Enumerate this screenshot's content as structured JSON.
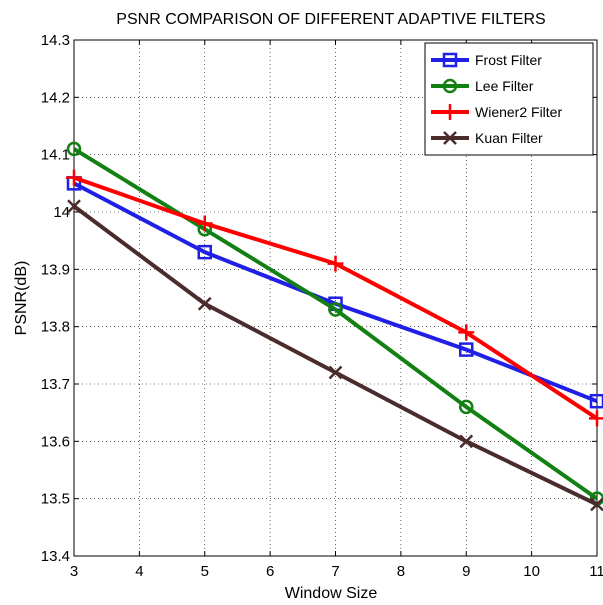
{
  "chart_data": {
    "type": "line",
    "title": "PSNR COMPARISON OF DIFFERENT ADAPTIVE FILTERS",
    "xlabel": "Window Size",
    "ylabel": "PSNR(dB)",
    "xlim": [
      3,
      11
    ],
    "ylim": [
      13.4,
      14.3
    ],
    "x_ticks": [
      "3",
      "4",
      "5",
      "6",
      "7",
      "8",
      "9",
      "10",
      "11"
    ],
    "y_ticks": [
      "13.4",
      "13.5",
      "13.6",
      "13.7",
      "13.8",
      "13.9",
      "14",
      "14.1",
      "14.2",
      "14.3"
    ],
    "grid": true,
    "legend_position": "top-right",
    "x": [
      3,
      5,
      7,
      9,
      11
    ],
    "series": [
      {
        "name": "Frost Filter",
        "color": "#1f1fe6",
        "marker": "square",
        "values": [
          14.05,
          13.93,
          13.84,
          13.76,
          13.67
        ]
      },
      {
        "name": "Lee Filter",
        "color": "#128012",
        "marker": "circle",
        "values": [
          14.11,
          13.97,
          13.83,
          13.66,
          13.5
        ]
      },
      {
        "name": "Wiener2 Filter",
        "color": "#ff0000",
        "marker": "plus",
        "values": [
          14.06,
          13.98,
          13.91,
          13.79,
          13.64
        ]
      },
      {
        "name": "Kuan Filter",
        "color": "#4a2c2c",
        "marker": "x",
        "values": [
          14.01,
          13.84,
          13.72,
          13.6,
          13.49
        ]
      }
    ]
  }
}
